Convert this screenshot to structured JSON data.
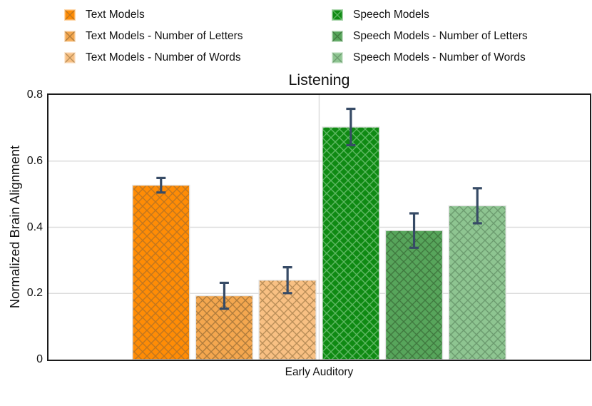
{
  "figure": {
    "background": "#ffffff"
  },
  "legend": {
    "position": "top-two-columns",
    "items": [
      {
        "label": "Text Models",
        "color": "#FF8C05",
        "hatch": "#C0761F"
      },
      {
        "label": "Text Models - Number of Letters",
        "color": "#F4A74F",
        "hatch": "#AF7C3C"
      },
      {
        "label": "Text Models - Number of Words",
        "color": "#F8C083",
        "hatch": "#B98E58"
      },
      {
        "label": "Speech Models",
        "color": "#0F8A13",
        "hatch": "#5FB863"
      },
      {
        "label": "Speech Models - Number of Letters",
        "color": "#57A55B",
        "hatch": "#40793F"
      },
      {
        "label": "Speech Models - Number of Words",
        "color": "#8EC591",
        "hatch": "#6C9B6F"
      }
    ]
  },
  "chart_data": {
    "type": "bar",
    "title": "Listening",
    "xlabel": "",
    "ylabel": "Normalized Brain Alignment",
    "categories": [
      "Early Auditory"
    ],
    "series": [
      {
        "name": "Text Models",
        "values": [
          0.527
        ],
        "errors": [
          0.022
        ],
        "color": "#FF8C05",
        "hatch_color": "#C0761F"
      },
      {
        "name": "Text Models - Number of Letters",
        "values": [
          0.193
        ],
        "errors": [
          0.039
        ],
        "color": "#F4A74F",
        "hatch_color": "#AF7C3C"
      },
      {
        "name": "Text Models - Number of Words",
        "values": [
          0.24
        ],
        "errors": [
          0.039
        ],
        "color": "#F8C083",
        "hatch_color": "#B98E58"
      },
      {
        "name": "Speech Models",
        "values": [
          0.703
        ],
        "errors": [
          0.055
        ],
        "color": "#0F8A13",
        "hatch_color": "#5FB863"
      },
      {
        "name": "Speech Models - Number of Letters",
        "values": [
          0.39
        ],
        "errors": [
          0.052
        ],
        "color": "#57A55B",
        "hatch_color": "#40793F"
      },
      {
        "name": "Speech Models - Number of Words",
        "values": [
          0.465
        ],
        "errors": [
          0.053
        ],
        "color": "#8EC591",
        "hatch_color": "#6C9B6F"
      }
    ],
    "ylim": [
      0,
      0.8
    ],
    "yticks": [
      0,
      0.2,
      0.4,
      0.6,
      0.8
    ],
    "ytick_labels": [
      "0",
      "0.2",
      "0.4",
      "0.6",
      "0.8"
    ],
    "grid": true,
    "grid_color": "#DCDCDC",
    "hatch_style": "xx",
    "bar_edge_color": "#E4E4E4",
    "error_bar_color": "#374B66",
    "legend_position": "top"
  }
}
